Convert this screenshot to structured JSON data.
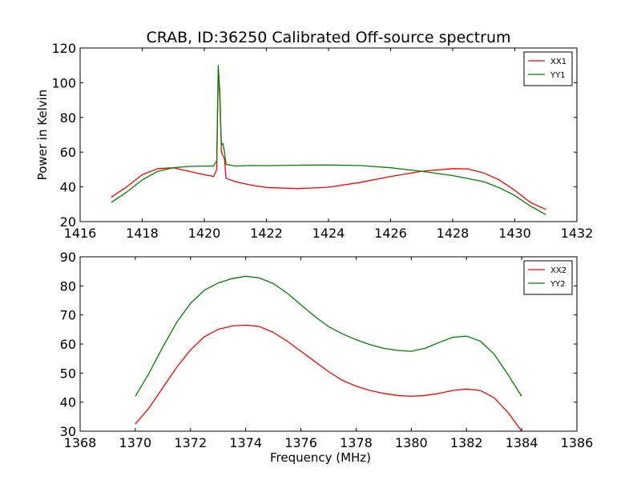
{
  "title": "CRAB, ID:36250 Calibrated Off-source spectrum",
  "chart_data": [
    {
      "type": "line",
      "xlabel": "",
      "ylabel": "Power in Kelvin",
      "xlim": [
        1416,
        1432
      ],
      "ylim": [
        20,
        120
      ],
      "xticks": [
        "1416",
        "1418",
        "1420",
        "1422",
        "1424",
        "1426",
        "1428",
        "1430",
        "1432"
      ],
      "yticks": [
        "20",
        "40",
        "60",
        "80",
        "100",
        "120"
      ],
      "grid": false,
      "legend_position": "top-right",
      "series": [
        {
          "name": "XX1",
          "color": "#ff0000",
          "points": [
            [
              1417.0,
              34.0
            ],
            [
              1417.5,
              40.0
            ],
            [
              1418.0,
              47.0
            ],
            [
              1418.5,
              50.5
            ],
            [
              1419.0,
              51.0
            ],
            [
              1419.5,
              49.0
            ],
            [
              1420.0,
              47.0
            ],
            [
              1420.3,
              46.0
            ],
            [
              1420.4,
              50.0
            ],
            [
              1420.45,
              108.0
            ],
            [
              1420.5,
              95.0
            ],
            [
              1420.55,
              60.0
            ],
            [
              1420.6,
              58.0
            ],
            [
              1420.65,
              56.0
            ],
            [
              1420.7,
              45.0
            ],
            [
              1421.0,
              43.0
            ],
            [
              1421.5,
              41.0
            ],
            [
              1422.0,
              39.7
            ],
            [
              1423.0,
              39.0
            ],
            [
              1424.0,
              39.8
            ],
            [
              1425.0,
              42.5
            ],
            [
              1426.0,
              46.0
            ],
            [
              1427.0,
              49.0
            ],
            [
              1428.0,
              50.5
            ],
            [
              1428.5,
              50.3
            ],
            [
              1429.0,
              48.0
            ],
            [
              1429.5,
              44.0
            ],
            [
              1430.0,
              38.0
            ],
            [
              1430.5,
              31.0
            ],
            [
              1431.0,
              27.0
            ]
          ]
        },
        {
          "name": "YY1",
          "color": "#008000",
          "points": [
            [
              1417.0,
              31.0
            ],
            [
              1417.5,
              37.0
            ],
            [
              1418.0,
              44.0
            ],
            [
              1418.5,
              49.0
            ],
            [
              1419.0,
              51.0
            ],
            [
              1419.5,
              51.8
            ],
            [
              1420.0,
              52.0
            ],
            [
              1420.3,
              52.0
            ],
            [
              1420.4,
              55.0
            ],
            [
              1420.45,
              110.0
            ],
            [
              1420.5,
              90.0
            ],
            [
              1420.55,
              64.0
            ],
            [
              1420.6,
              65.0
            ],
            [
              1420.65,
              60.0
            ],
            [
              1420.7,
              53.0
            ],
            [
              1421.0,
              52.0
            ],
            [
              1421.5,
              52.3
            ],
            [
              1422.0,
              52.2
            ],
            [
              1423.0,
              52.5
            ],
            [
              1424.0,
              52.6
            ],
            [
              1425.0,
              52.3
            ],
            [
              1426.0,
              51.0
            ],
            [
              1427.0,
              49.0
            ],
            [
              1428.0,
              46.5
            ],
            [
              1429.0,
              43.0
            ],
            [
              1429.5,
              39.5
            ],
            [
              1430.0,
              35.0
            ],
            [
              1430.5,
              29.0
            ],
            [
              1431.0,
              24.0
            ]
          ]
        }
      ]
    },
    {
      "type": "line",
      "xlabel": "Frequency (MHz)",
      "ylabel": "",
      "xlim": [
        1368,
        1386
      ],
      "ylim": [
        30,
        90
      ],
      "xticks": [
        "1368",
        "1370",
        "1372",
        "1374",
        "1376",
        "1378",
        "1380",
        "1382",
        "1384",
        "1386"
      ],
      "yticks": [
        "30",
        "40",
        "50",
        "60",
        "70",
        "80",
        "90"
      ],
      "grid": false,
      "legend_position": "top-right",
      "series": [
        {
          "name": "XX2",
          "color": "#ff0000",
          "points": [
            [
              1370.0,
              32.5
            ],
            [
              1370.5,
              38.0
            ],
            [
              1371.0,
              45.0
            ],
            [
              1371.5,
              52.0
            ],
            [
              1372.0,
              58.0
            ],
            [
              1372.5,
              62.5
            ],
            [
              1373.0,
              65.0
            ],
            [
              1373.5,
              66.2
            ],
            [
              1374.0,
              66.5
            ],
            [
              1374.5,
              66.0
            ],
            [
              1375.0,
              64.0
            ],
            [
              1375.5,
              61.0
            ],
            [
              1376.0,
              57.5
            ],
            [
              1376.5,
              54.0
            ],
            [
              1377.0,
              50.5
            ],
            [
              1377.5,
              47.5
            ],
            [
              1378.0,
              45.5
            ],
            [
              1378.5,
              44.0
            ],
            [
              1379.0,
              43.0
            ],
            [
              1379.5,
              42.3
            ],
            [
              1380.0,
              42.0
            ],
            [
              1380.5,
              42.3
            ],
            [
              1381.0,
              43.0
            ],
            [
              1381.5,
              44.0
            ],
            [
              1382.0,
              44.5
            ],
            [
              1382.5,
              44.0
            ],
            [
              1383.0,
              41.5
            ],
            [
              1383.5,
              36.5
            ],
            [
              1384.0,
              30.0
            ]
          ]
        },
        {
          "name": "YY2",
          "color": "#008000",
          "points": [
            [
              1370.0,
              42.0
            ],
            [
              1370.5,
              50.0
            ],
            [
              1371.0,
              59.0
            ],
            [
              1371.5,
              67.5
            ],
            [
              1372.0,
              74.0
            ],
            [
              1372.5,
              78.5
            ],
            [
              1373.0,
              81.0
            ],
            [
              1373.5,
              82.5
            ],
            [
              1374.0,
              83.3
            ],
            [
              1374.5,
              82.7
            ],
            [
              1375.0,
              80.8
            ],
            [
              1375.5,
              77.5
            ],
            [
              1376.0,
              73.5
            ],
            [
              1376.5,
              69.5
            ],
            [
              1377.0,
              66.0
            ],
            [
              1377.5,
              63.5
            ],
            [
              1378.0,
              61.5
            ],
            [
              1378.5,
              59.8
            ],
            [
              1379.0,
              58.5
            ],
            [
              1379.5,
              57.8
            ],
            [
              1380.0,
              57.5
            ],
            [
              1380.5,
              58.5
            ],
            [
              1381.0,
              60.5
            ],
            [
              1381.5,
              62.3
            ],
            [
              1382.0,
              62.7
            ],
            [
              1382.5,
              61.0
            ],
            [
              1383.0,
              56.5
            ],
            [
              1383.5,
              49.5
            ],
            [
              1384.0,
              42.0
            ]
          ]
        }
      ]
    }
  ]
}
